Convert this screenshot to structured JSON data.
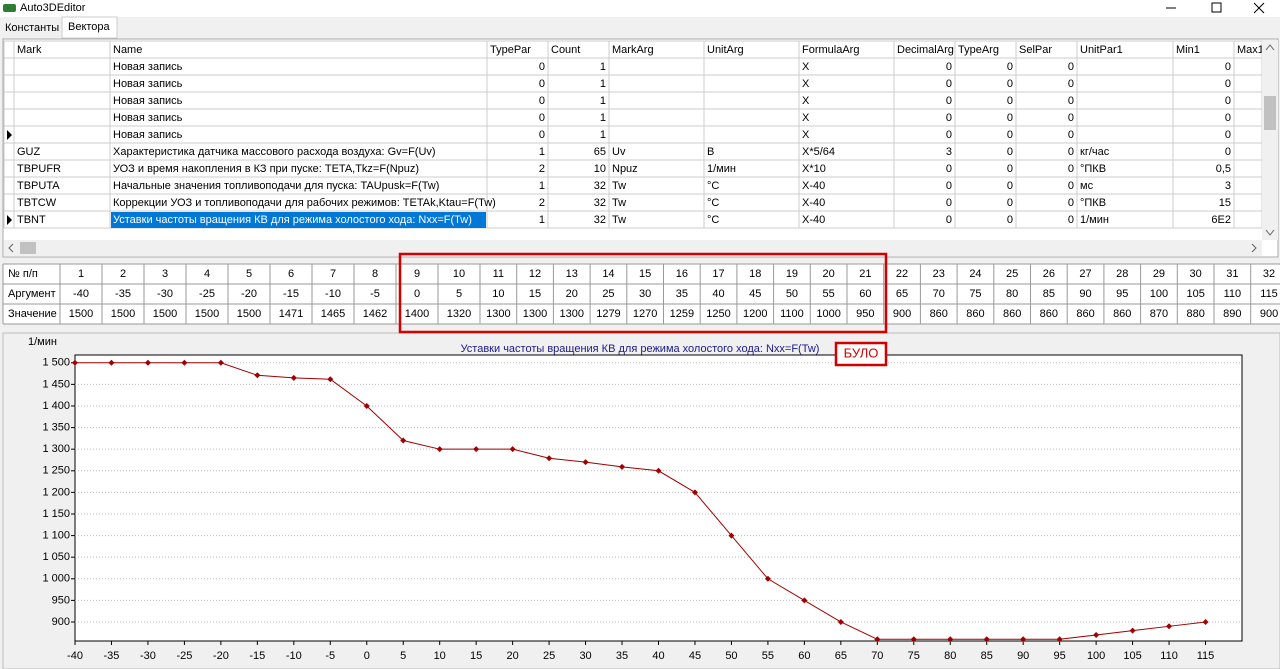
{
  "app": {
    "title": "Auto3DEditor",
    "tabs": [
      "Константы",
      "Вектора"
    ]
  },
  "grid": {
    "columns": [
      "Mark",
      "Name",
      "TypePar",
      "Count",
      "MarkArg",
      "UnitArg",
      "FormulaArg",
      "DecimalArg",
      "TypeArg",
      "SelPar",
      "UnitPar1",
      "Min1",
      "Max1"
    ],
    "rows": [
      [
        null,
        "Новая запись",
        0,
        1,
        null,
        null,
        "X",
        0,
        0,
        0,
        null,
        0
      ],
      [
        null,
        "Новая запись",
        0,
        1,
        null,
        null,
        "X",
        0,
        0,
        0,
        null,
        0
      ],
      [
        null,
        "Новая запись",
        0,
        1,
        null,
        null,
        "X",
        0,
        0,
        0,
        null,
        0
      ],
      [
        null,
        "Новая запись",
        0,
        1,
        null,
        null,
        "X",
        0,
        0,
        0,
        null,
        0
      ],
      [
        null,
        "Новая запись",
        0,
        1,
        null,
        null,
        "X",
        0,
        0,
        0,
        null,
        0
      ],
      [
        "GUZ",
        "Характеристика датчика массового расхода воздуха: Gv=F(Uv)",
        1,
        65,
        "Uv",
        "В",
        "X*5/64",
        3,
        0,
        0,
        "кг/час",
        0
      ],
      [
        "TBPUFR",
        "УОЗ и время накопления в КЗ при пуске: TETA,Tkz=F(Npuz)",
        2,
        10,
        "Npuz",
        "1/мин",
        "X*10",
        0,
        0,
        0,
        "°ПКВ",
        "0,5"
      ],
      [
        "TBPUTA",
        "Начальные значения топливоподачи для пуска: TAUpusk=F(Tw)",
        1,
        32,
        "Tw",
        "°C",
        "X-40",
        0,
        0,
        0,
        "мс",
        3
      ],
      [
        "TBTCW",
        "Коррекции УОЗ и топливоподачи для рабочих режимов: TETAk,Ktau=F(Tw)",
        2,
        32,
        "Tw",
        "°C",
        "X-40",
        0,
        0,
        0,
        "°ПКВ",
        15
      ],
      [
        "TBNT",
        "Уставки частоты вращения КВ для режима холостого хода: Nxx=F(Tw)",
        1,
        32,
        "Tw",
        "°C",
        "X-40",
        0,
        0,
        0,
        "1/мин",
        "6E2"
      ]
    ]
  },
  "vector_table": {
    "row_labels": [
      "№ п/п",
      "Аргумент",
      "Значение"
    ],
    "index": [
      1,
      2,
      3,
      4,
      5,
      6,
      7,
      8,
      9,
      10,
      11,
      12,
      13,
      14,
      15,
      16,
      17,
      18,
      19,
      20,
      21,
      22,
      23,
      24,
      25,
      26,
      27,
      28,
      29,
      30,
      31,
      32
    ],
    "arguments": [
      -40,
      -35,
      -30,
      -25,
      -20,
      -15,
      -10,
      -5,
      0,
      5,
      10,
      15,
      20,
      25,
      30,
      35,
      40,
      45,
      50,
      55,
      60,
      65,
      70,
      75,
      80,
      85,
      90,
      95,
      100,
      105,
      110,
      115
    ],
    "values": [
      1500,
      1500,
      1500,
      1500,
      1500,
      1471,
      1465,
      1462,
      1400,
      1320,
      1300,
      1300,
      1300,
      1279,
      1270,
      1259,
      1250,
      1200,
      1100,
      1000,
      950,
      900,
      860,
      860,
      860,
      860,
      860,
      860,
      870,
      880,
      890,
      900
    ]
  },
  "annotation": "БУЛО",
  "chart_data": {
    "type": "line",
    "title": "Уставки частоты вращения КВ для режима холостого хода: Nxx=F(Tw)",
    "y_label": "1/мин",
    "x": [
      -40,
      -35,
      -30,
      -25,
      -20,
      -15,
      -10,
      -5,
      0,
      5,
      10,
      15,
      20,
      25,
      30,
      35,
      40,
      45,
      50,
      55,
      60,
      65,
      70,
      75,
      80,
      85,
      90,
      95,
      100,
      105,
      110,
      115
    ],
    "series": [
      {
        "color": "#a00000",
        "values": [
          1500,
          1500,
          1500,
          1500,
          1500,
          1471,
          1465,
          1462,
          1400,
          1320,
          1300,
          1300,
          1300,
          1279,
          1270,
          1259,
          1250,
          1200,
          1100,
          1000,
          950,
          900,
          860,
          860,
          860,
          860,
          860,
          860,
          870,
          880,
          890,
          900
        ]
      }
    ],
    "xlim": [
      -40,
      120
    ],
    "xticks": [
      -40,
      -35,
      -30,
      -25,
      -20,
      -15,
      -10,
      -5,
      0,
      5,
      10,
      15,
      20,
      25,
      30,
      35,
      40,
      45,
      50,
      55,
      60,
      65,
      70,
      75,
      80,
      85,
      90,
      95,
      100,
      105,
      110,
      115
    ],
    "ylim": [
      856,
      1518
    ],
    "yticks": [
      900,
      950,
      {
        "value": 1000,
        "label": "1 000"
      },
      {
        "value": 1050,
        "label": "1 050"
      },
      {
        "value": 1100,
        "label": "1 100"
      },
      {
        "value": 1150,
        "label": "1 150"
      },
      {
        "value": 1200,
        "label": "1 200"
      },
      {
        "value": 1250,
        "label": "1 250"
      },
      {
        "value": 1300,
        "label": "1 300"
      },
      {
        "value": 1350,
        "label": "1 350"
      },
      {
        "value": 1400,
        "label": "1 400"
      },
      {
        "value": 1450,
        "label": "1 450"
      },
      {
        "value": 1500,
        "label": "1 500"
      }
    ],
    "grid": true
  }
}
